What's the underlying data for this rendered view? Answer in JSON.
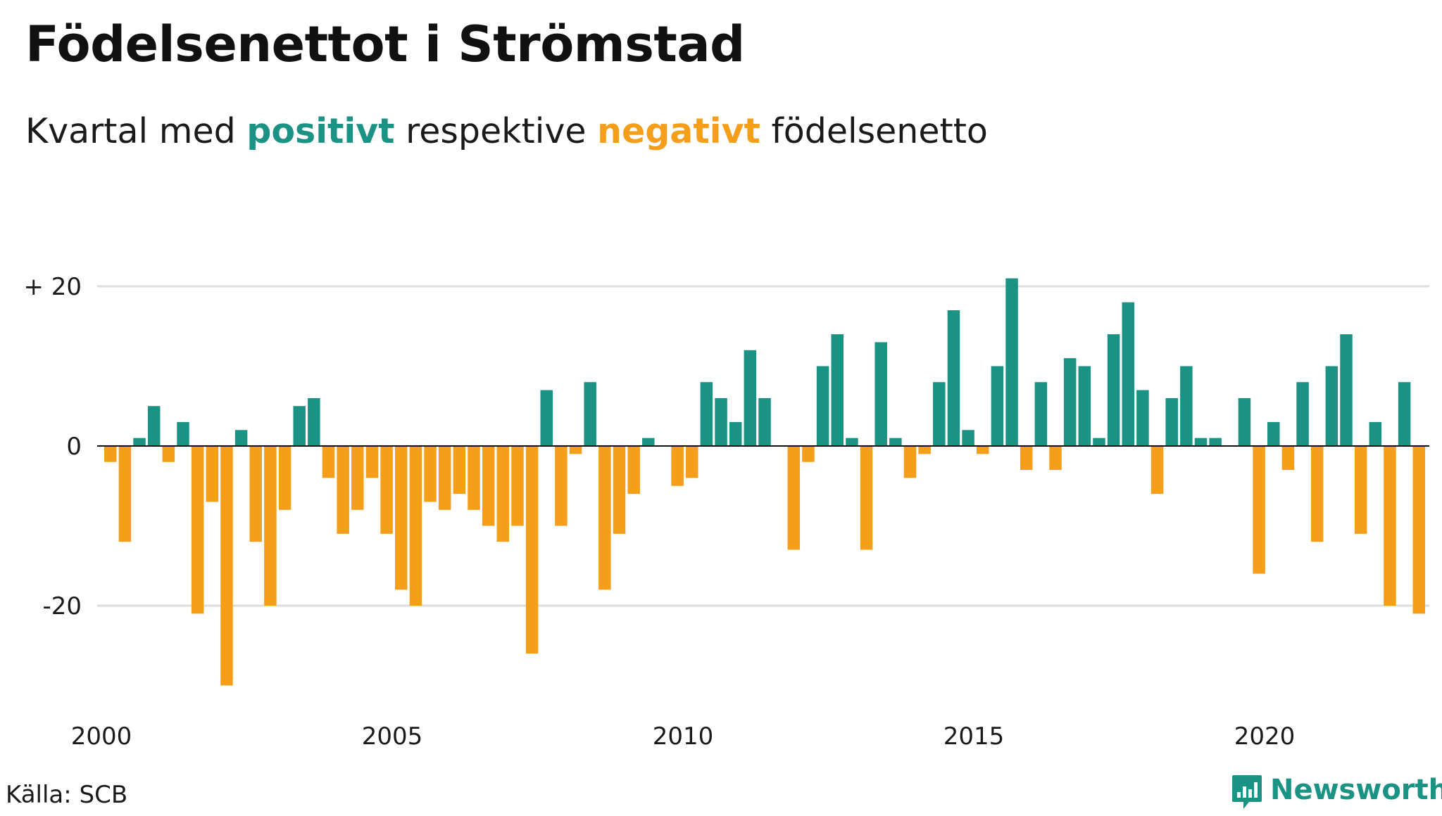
{
  "header": {
    "title": "Födelsenettot i Strömstad",
    "subtitle_prefix": "Kvartal med ",
    "subtitle_positive": "positivt",
    "subtitle_middle": " respektive ",
    "subtitle_negative": "negativt",
    "subtitle_suffix": " födelsenetto"
  },
  "footer": {
    "source": "Källa: SCB",
    "brand": "Newsworthy",
    "brand_icon": "newsworthy-logo-icon"
  },
  "colors": {
    "positive": "#1a9384",
    "negative": "#f59e1a",
    "gridline": "#dddddd",
    "zero_line": "#111111"
  },
  "chart_data": {
    "type": "bar",
    "title": "Födelsenettot i Strömstad",
    "xlabel": "",
    "ylabel": "",
    "ylim": [
      -33,
      24
    ],
    "start_year": 2000,
    "quarters_per_year": 4,
    "y_ticks": [
      {
        "value": 20,
        "label": "+ 20"
      },
      {
        "value": 0,
        "label": "0"
      },
      {
        "value": -20,
        "label": "-20"
      }
    ],
    "x_ticks": [
      {
        "year": 2000,
        "label": "2000"
      },
      {
        "year": 2005,
        "label": "2005"
      },
      {
        "year": 2010,
        "label": "2010"
      },
      {
        "year": 2015,
        "label": "2015"
      },
      {
        "year": 2020,
        "label": "2020"
      }
    ],
    "grid": true,
    "values": [
      -2,
      -12,
      1,
      5,
      -2,
      3,
      -21,
      -7,
      -30,
      2,
      -12,
      -20,
      -8,
      5,
      6,
      -4,
      -11,
      -8,
      -4,
      -11,
      -18,
      -20,
      -7,
      -8,
      -6,
      -8,
      -10,
      -12,
      -10,
      -26,
      7,
      -10,
      -1,
      8,
      -18,
      -11,
      -6,
      1,
      0,
      -5,
      -4,
      8,
      6,
      3,
      12,
      6,
      0,
      -13,
      -2,
      10,
      14,
      1,
      -13,
      13,
      1,
      -4,
      -1,
      8,
      17,
      2,
      -1,
      10,
      21,
      -3,
      8,
      -3,
      11,
      10,
      1,
      14,
      18,
      7,
      -6,
      6,
      10,
      1,
      1,
      0,
      6,
      -16,
      3,
      -3,
      8,
      -12,
      10,
      14,
      -11,
      3,
      -20,
      8,
      -21
    ]
  }
}
